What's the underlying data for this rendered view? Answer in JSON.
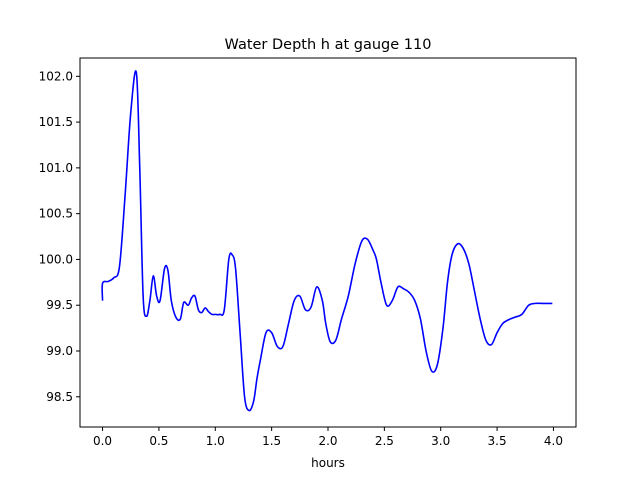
{
  "chart_data": {
    "type": "line",
    "title": "Water Depth h at gauge 110",
    "xlabel": "hours",
    "ylabel": "",
    "xlim": [
      -0.2,
      4.2
    ],
    "ylim": [
      98.17,
      102.2
    ],
    "xticks": [
      0.0,
      0.5,
      1.0,
      1.5,
      2.0,
      2.5,
      3.0,
      3.5,
      4.0
    ],
    "xtick_labels": [
      "0.0",
      "0.5",
      "1.0",
      "1.5",
      "2.0",
      "2.5",
      "3.0",
      "3.5",
      "4.0"
    ],
    "yticks": [
      98.5,
      99.0,
      99.5,
      100.0,
      100.5,
      101.0,
      101.5,
      102.0
    ],
    "ytick_labels": [
      "98.5",
      "99.0",
      "99.5",
      "100.0",
      "100.5",
      "101.0",
      "101.5",
      "102.0"
    ],
    "grid": false,
    "series": [
      {
        "color": "#0000ff",
        "x": [
          0.0,
          0.0,
          0.05,
          0.1,
          0.15,
          0.2,
          0.25,
          0.3,
          0.33,
          0.36,
          0.39,
          0.42,
          0.45,
          0.48,
          0.51,
          0.55,
          0.58,
          0.61,
          0.65,
          0.69,
          0.72,
          0.76,
          0.79,
          0.82,
          0.85,
          0.88,
          0.91,
          0.94,
          0.97,
          1.0,
          1.04,
          1.08,
          1.12,
          1.15,
          1.18,
          1.22,
          1.26,
          1.3,
          1.34,
          1.37,
          1.4,
          1.45,
          1.5,
          1.55,
          1.6,
          1.65,
          1.7,
          1.75,
          1.8,
          1.85,
          1.9,
          1.95,
          1.98,
          2.02,
          2.07,
          2.12,
          2.18,
          2.24,
          2.3,
          2.35,
          2.4,
          2.43,
          2.47,
          2.52,
          2.57,
          2.62,
          2.67,
          2.72,
          2.77,
          2.82,
          2.87,
          2.92,
          2.97,
          3.02,
          3.06,
          3.1,
          3.15,
          3.2,
          3.25,
          3.3,
          3.35,
          3.4,
          3.45,
          3.5,
          3.55,
          3.6,
          3.66,
          3.72,
          3.78,
          3.84,
          3.9,
          3.95,
          3.99
        ],
        "y": [
          99.55,
          99.74,
          99.76,
          99.8,
          99.92,
          100.7,
          101.6,
          102.04,
          101.0,
          99.6,
          99.38,
          99.55,
          99.82,
          99.6,
          99.55,
          99.9,
          99.88,
          99.55,
          99.37,
          99.35,
          99.53,
          99.5,
          99.58,
          99.6,
          99.45,
          99.42,
          99.47,
          99.43,
          99.4,
          99.4,
          99.4,
          99.45,
          100.0,
          100.05,
          99.9,
          99.2,
          98.5,
          98.35,
          98.45,
          98.7,
          98.9,
          99.2,
          99.2,
          99.05,
          99.05,
          99.3,
          99.55,
          99.6,
          99.45,
          99.48,
          99.7,
          99.55,
          99.3,
          99.1,
          99.12,
          99.35,
          99.6,
          99.95,
          100.2,
          100.22,
          100.1,
          100.0,
          99.75,
          99.5,
          99.55,
          99.7,
          99.68,
          99.64,
          99.55,
          99.35,
          99.0,
          98.78,
          98.85,
          99.25,
          99.75,
          100.05,
          100.17,
          100.12,
          99.95,
          99.65,
          99.35,
          99.12,
          99.07,
          99.2,
          99.3,
          99.34,
          99.37,
          99.4,
          99.5,
          99.52,
          99.52,
          99.52,
          99.52
        ]
      }
    ]
  }
}
